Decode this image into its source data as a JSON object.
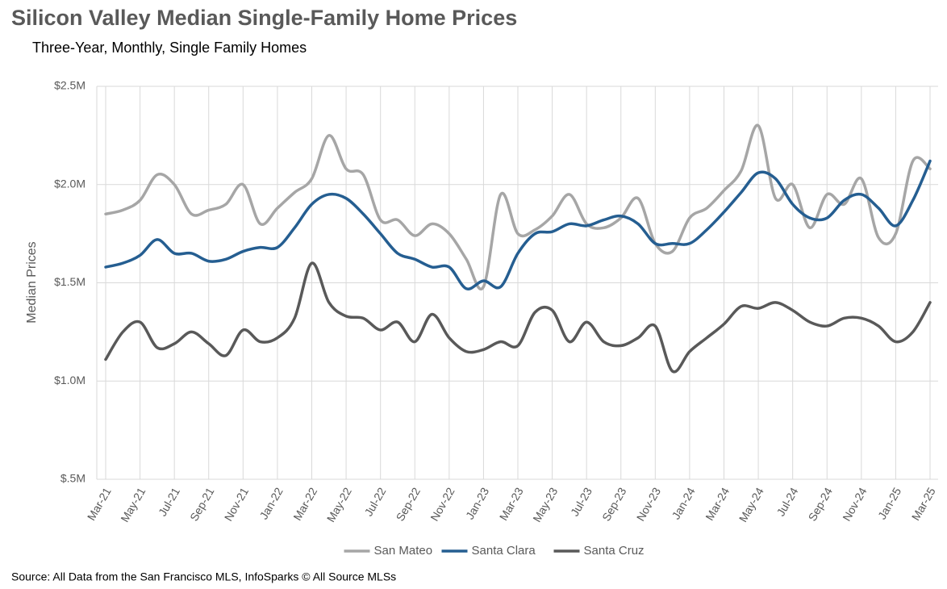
{
  "chart_data": {
    "type": "line",
    "title": "Silicon Valley Median Single-Family Home Prices",
    "subtitle": "Three-Year, Monthly, Single Family Homes",
    "y_label": "Median Prices",
    "source": "Source: All Data from the San Francisco MLS, InfoSparks © All Source MLSs",
    "categories": [
      "Mar-21",
      null,
      "May-21",
      null,
      "Jul-21",
      null,
      "Sep-21",
      null,
      "Nov-21",
      null,
      "Jan-22",
      null,
      "Mar-22",
      null,
      "May-22",
      null,
      "Jul-22",
      null,
      "Sep-22",
      null,
      "Nov-22",
      null,
      "Jan-23",
      null,
      "Mar-23",
      null,
      "May-23",
      null,
      "Jul-23",
      null,
      "Sep-23",
      null,
      "Nov-23",
      null,
      "Jan-24",
      null,
      "Mar-24",
      null,
      "May-24",
      null,
      "Jul-24",
      null,
      "Sep-24",
      null,
      "Nov-24",
      null,
      "Jan-25",
      null,
      "Mar-25"
    ],
    "series": [
      {
        "name": "San Mateo",
        "color": "#a6a6a6",
        "values": [
          1850000,
          1870000,
          1920000,
          2050000,
          2000000,
          1850000,
          1870000,
          1900000,
          2000000,
          1800000,
          1880000,
          1960000,
          2030000,
          2250000,
          2080000,
          2050000,
          1820000,
          1820000,
          1740000,
          1800000,
          1750000,
          1620000,
          1480000,
          1950000,
          1750000,
          1770000,
          1840000,
          1950000,
          1800000,
          1780000,
          1830000,
          1930000,
          1700000,
          1660000,
          1830000,
          1880000,
          1970000,
          2070000,
          2300000,
          1930000,
          2000000,
          1780000,
          1950000,
          1900000,
          2030000,
          1730000,
          1750000,
          2120000,
          2080000
        ]
      },
      {
        "name": "Santa Clara",
        "color": "#255e91",
        "values": [
          1580000,
          1600000,
          1640000,
          1720000,
          1650000,
          1650000,
          1610000,
          1620000,
          1660000,
          1680000,
          1680000,
          1780000,
          1900000,
          1950000,
          1930000,
          1850000,
          1750000,
          1650000,
          1620000,
          1580000,
          1580000,
          1470000,
          1510000,
          1480000,
          1650000,
          1750000,
          1760000,
          1800000,
          1790000,
          1820000,
          1840000,
          1800000,
          1700000,
          1700000,
          1700000,
          1770000,
          1860000,
          1960000,
          2060000,
          2030000,
          1900000,
          1830000,
          1830000,
          1920000,
          1950000,
          1880000,
          1790000,
          1920000,
          2120000
        ]
      },
      {
        "name": "Santa Cruz",
        "color": "#595959",
        "values": [
          1110000,
          1250000,
          1300000,
          1170000,
          1190000,
          1250000,
          1190000,
          1130000,
          1260000,
          1200000,
          1220000,
          1320000,
          1600000,
          1400000,
          1330000,
          1320000,
          1260000,
          1300000,
          1200000,
          1340000,
          1220000,
          1150000,
          1160000,
          1200000,
          1180000,
          1350000,
          1360000,
          1200000,
          1300000,
          1200000,
          1180000,
          1220000,
          1280000,
          1050000,
          1150000,
          1220000,
          1290000,
          1380000,
          1370000,
          1400000,
          1360000,
          1300000,
          1280000,
          1320000,
          1320000,
          1280000,
          1200000,
          1250000,
          1400000
        ]
      }
    ],
    "ylim": [
      500000,
      2500000
    ],
    "yticks": [
      {
        "value": 500000,
        "label": "$.5M"
      },
      {
        "value": 1000000,
        "label": "$1.0M"
      },
      {
        "value": 1500000,
        "label": "$1.5M"
      },
      {
        "value": 2000000,
        "label": "$2.0M"
      },
      {
        "value": 2500000,
        "label": "$2.5M"
      }
    ],
    "grid": true,
    "legend": "bottom"
  }
}
